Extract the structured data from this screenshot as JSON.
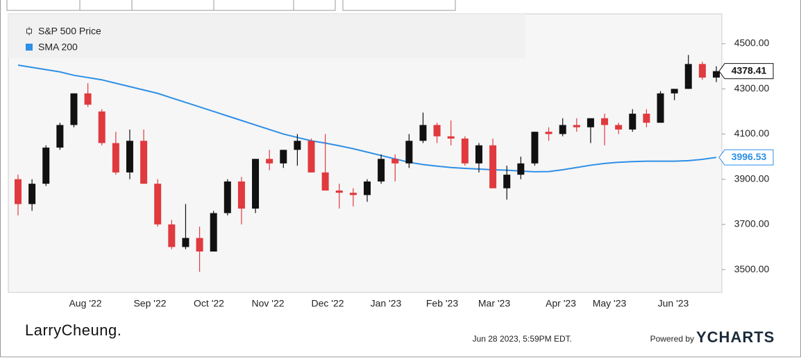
{
  "chart_data": {
    "type": "candlestick",
    "legend": [
      "S&P 500 Price",
      "SMA 200"
    ],
    "x_tick_labels": [
      "Aug '22",
      "Sep '22",
      "Oct '22",
      "Nov '22",
      "Dec '22",
      "Jan '23",
      "Feb '23",
      "Mar '23",
      "Apr '23",
      "May '23",
      "Jun '23"
    ],
    "ylim": [
      3399,
      4632
    ],
    "yticks": [
      {
        "value": 3500,
        "label": "3500.00"
      },
      {
        "value": 3700,
        "label": "3700.00"
      },
      {
        "value": 3900,
        "label": "3900.00"
      },
      {
        "value": 4100,
        "label": "4100.00"
      },
      {
        "value": 4300,
        "label": "4300.00"
      },
      {
        "value": 4500,
        "label": "4500.00"
      }
    ],
    "grid": false,
    "series": [
      {
        "name": "S&P 500 Price",
        "type": "candlestick",
        "up_color": "#111111",
        "down_color": "#e0393e",
        "open": [
          3900,
          3790,
          3880,
          4040,
          4140,
          4280,
          4200,
          4060,
          3930,
          4070,
          3880,
          3700,
          3600,
          3640,
          3580,
          3750,
          3890,
          3770,
          3990,
          3970,
          4030,
          4070,
          3930,
          3850,
          3840,
          3830,
          3890,
          3990,
          3970,
          4070,
          4140,
          4090,
          4080,
          3970,
          4050,
          3860,
          3920,
          3970,
          4110,
          4100,
          4140,
          4130,
          4170,
          4140,
          4120,
          4190,
          4150,
          4280,
          4300,
          4410,
          4350
        ],
        "high": [
          3920,
          3900,
          4050,
          4150,
          4280,
          4325,
          4210,
          4110,
          4120,
          4120,
          3900,
          3720,
          3790,
          3690,
          3760,
          3900,
          3910,
          3990,
          4030,
          4030,
          4100,
          4080,
          4100,
          3880,
          3860,
          3900,
          4010,
          4010,
          4100,
          4195,
          4150,
          4160,
          4090,
          4060,
          4080,
          3960,
          4000,
          4110,
          4130,
          4170,
          4170,
          4170,
          4190,
          4150,
          4210,
          4210,
          4290,
          4300,
          4450,
          4420,
          4400
        ],
        "low": [
          3740,
          3760,
          3870,
          4030,
          4130,
          4220,
          4050,
          3920,
          3900,
          3880,
          3690,
          3590,
          3590,
          3490,
          3580,
          3740,
          3700,
          3750,
          3940,
          3950,
          3960,
          3930,
          3850,
          3770,
          3780,
          3800,
          3880,
          3890,
          3950,
          4060,
          4060,
          4050,
          3960,
          3930,
          3860,
          3810,
          3900,
          3960,
          4070,
          4090,
          4110,
          4060,
          4050,
          4100,
          4110,
          4130,
          4150,
          4250,
          4300,
          4340,
          4330
        ],
        "close": [
          3790,
          3880,
          4040,
          4140,
          4280,
          4230,
          4060,
          3930,
          4070,
          3880,
          3700,
          3600,
          3640,
          3580,
          3750,
          3890,
          3770,
          3990,
          3970,
          4030,
          4070,
          3930,
          3850,
          3840,
          3830,
          3890,
          3990,
          3970,
          4070,
          4140,
          4090,
          4080,
          3970,
          4050,
          3860,
          3920,
          3970,
          4110,
          4100,
          4140,
          4130,
          4170,
          4140,
          4120,
          4190,
          4150,
          4280,
          4300,
          4410,
          4350,
          4378.41
        ]
      },
      {
        "name": "SMA 200",
        "type": "line",
        "color": "#2d8fe6",
        "values": [
          4405,
          4395,
          4385,
          4375,
          4360,
          4350,
          4340,
          4325,
          4310,
          4295,
          4280,
          4260,
          4240,
          4220,
          4200,
          4180,
          4160,
          4140,
          4120,
          4100,
          4085,
          4070,
          4060,
          4048,
          4035,
          4020,
          4005,
          3990,
          3975,
          3965,
          3958,
          3952,
          3948,
          3945,
          3942,
          3940,
          3936,
          3933,
          3934,
          3942,
          3952,
          3962,
          3970,
          3975,
          3978,
          3980,
          3980,
          3980,
          3982,
          3988,
          3996.53
        ]
      }
    ],
    "brand": "LarryCheung.",
    "timestamp": "Jun 28 2023, 5:59PM EDT.",
    "powered_by": "Powered by",
    "provider": "YCHARTS"
  }
}
